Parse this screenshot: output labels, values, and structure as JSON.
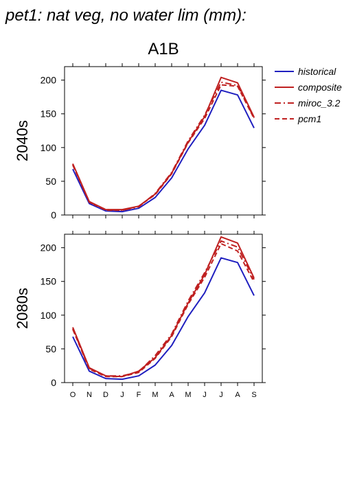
{
  "page": {
    "title": "pet1: nat veg, no water lim (mm):",
    "subtitle": "A1B"
  },
  "legend": {
    "placement": "right",
    "items": [
      {
        "label": "historical",
        "color": "#1f1fbf",
        "dash": "solid"
      },
      {
        "label": "composite",
        "color": "#bf2020",
        "dash": "solid"
      },
      {
        "label": "miroc_3.2",
        "color": "#bf2020",
        "dash": "dashdot"
      },
      {
        "label": "pcm1",
        "color": "#bf2020",
        "dash": "dashed"
      }
    ]
  },
  "chart_data": [
    {
      "type": "line",
      "ylabel": "2040s",
      "xlabel": "",
      "categories": [
        "O",
        "N",
        "D",
        "J",
        "F",
        "M",
        "A",
        "M",
        "J",
        "J",
        "A",
        "S"
      ],
      "ylim": [
        0,
        220
      ],
      "yticks": [
        0,
        50,
        100,
        150,
        200
      ],
      "series": [
        {
          "name": "historical",
          "color": "#1f1fbf",
          "dash": "solid",
          "values": [
            68,
            17,
            6,
            5,
            10,
            26,
            55,
            98,
            133,
            185,
            178,
            129
          ]
        },
        {
          "name": "composite",
          "color": "#bf2020",
          "dash": "solid",
          "values": [
            76,
            20,
            8,
            8,
            13,
            31,
            62,
            108,
            146,
            204,
            196,
            145
          ]
        },
        {
          "name": "miroc_3.2",
          "color": "#bf2020",
          "dash": "dashdot",
          "values": [
            75,
            19,
            8,
            7,
            12,
            32,
            63,
            110,
            148,
            197,
            192,
            144
          ]
        },
        {
          "name": "pcm1",
          "color": "#bf2020",
          "dash": "dashed",
          "values": [
            74,
            19,
            7,
            7,
            13,
            30,
            61,
            107,
            143,
            193,
            191,
            143
          ]
        }
      ]
    },
    {
      "type": "line",
      "ylabel": "2080s",
      "xlabel": "",
      "categories": [
        "O",
        "N",
        "D",
        "J",
        "F",
        "M",
        "A",
        "M",
        "J",
        "J",
        "A",
        "S"
      ],
      "ylim": [
        0,
        220
      ],
      "yticks": [
        0,
        50,
        100,
        150,
        200
      ],
      "series": [
        {
          "name": "historical",
          "color": "#1f1fbf",
          "dash": "solid",
          "values": [
            68,
            17,
            6,
            5,
            10,
            26,
            55,
            98,
            133,
            185,
            178,
            129
          ]
        },
        {
          "name": "composite",
          "color": "#bf2020",
          "dash": "solid",
          "values": [
            82,
            22,
            10,
            9,
            17,
            37,
            70,
            118,
            160,
            216,
            207,
            155
          ]
        },
        {
          "name": "miroc_3.2",
          "color": "#bf2020",
          "dash": "dashdot",
          "values": [
            80,
            21,
            10,
            10,
            16,
            40,
            72,
            121,
            163,
            210,
            201,
            153
          ]
        },
        {
          "name": "pcm1",
          "color": "#bf2020",
          "dash": "dashed",
          "values": [
            79,
            20,
            9,
            9,
            15,
            36,
            68,
            116,
            156,
            206,
            195,
            149
          ]
        }
      ]
    }
  ]
}
